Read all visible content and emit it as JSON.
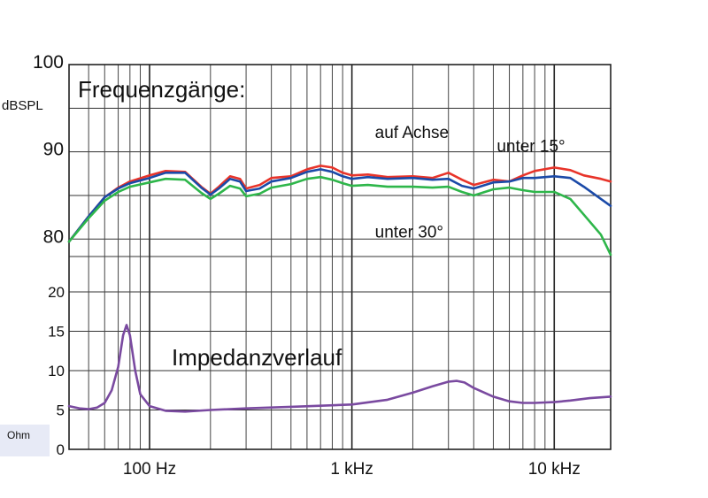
{
  "chart_data": {
    "type": "line",
    "title": "Frequenzgänge:",
    "annotation": "Impedanzverlauf",
    "x_axis": {
      "scale": "log",
      "unit": "Hz",
      "range": [
        40,
        19000
      ],
      "tick_labels": [
        {
          "value": 100,
          "label": "100 Hz"
        },
        {
          "value": 1000,
          "label": "1 kHz"
        },
        {
          "value": 10000,
          "label": "10 kHz"
        }
      ]
    },
    "spl_axis": {
      "unit_label": "dBSPL",
      "range": [
        78,
        100
      ],
      "tick_labels": [
        {
          "value": 100,
          "label": "100"
        },
        {
          "value": 90,
          "label": "90"
        },
        {
          "value": 80,
          "label": "80"
        }
      ]
    },
    "impedance_axis": {
      "unit_label": "Ohm",
      "range": [
        0,
        20
      ],
      "tick_labels": [
        {
          "value": 20,
          "label": "20"
        },
        {
          "value": 15,
          "label": "15"
        },
        {
          "value": 10,
          "label": "10"
        },
        {
          "value": 5,
          "label": "5"
        },
        {
          "value": 0,
          "label": "0"
        }
      ]
    },
    "series": [
      {
        "name": "auf Achse",
        "axis": "spl",
        "color": "#e8342a",
        "label_pos": {
          "freq": 1300,
          "value": 91.6
        },
        "points": [
          [
            40,
            79.7
          ],
          [
            50,
            82.6
          ],
          [
            60,
            84.8
          ],
          [
            70,
            85.9
          ],
          [
            80,
            86.6
          ],
          [
            100,
            87.3
          ],
          [
            120,
            87.8
          ],
          [
            150,
            87.7
          ],
          [
            180,
            86.0
          ],
          [
            200,
            85.2
          ],
          [
            220,
            86.0
          ],
          [
            250,
            87.2
          ],
          [
            280,
            86.9
          ],
          [
            300,
            85.8
          ],
          [
            350,
            86.2
          ],
          [
            400,
            87.0
          ],
          [
            500,
            87.2
          ],
          [
            600,
            88.0
          ],
          [
            700,
            88.4
          ],
          [
            800,
            88.2
          ],
          [
            900,
            87.6
          ],
          [
            1000,
            87.3
          ],
          [
            1200,
            87.4
          ],
          [
            1500,
            87.1
          ],
          [
            2000,
            87.2
          ],
          [
            2500,
            87.0
          ],
          [
            3000,
            87.6
          ],
          [
            3500,
            86.8
          ],
          [
            4000,
            86.2
          ],
          [
            5000,
            86.8
          ],
          [
            6000,
            86.6
          ],
          [
            7000,
            87.3
          ],
          [
            8000,
            87.8
          ],
          [
            10000,
            88.2
          ],
          [
            12000,
            87.9
          ],
          [
            14000,
            87.3
          ],
          [
            17000,
            86.9
          ],
          [
            19000,
            86.6
          ]
        ]
      },
      {
        "name": "unter 15°",
        "axis": "spl",
        "color": "#1b4aa8",
        "label_pos": {
          "freq": 5200,
          "value": 90.0
        },
        "points": [
          [
            40,
            79.7
          ],
          [
            50,
            82.6
          ],
          [
            60,
            84.8
          ],
          [
            70,
            85.8
          ],
          [
            80,
            86.4
          ],
          [
            100,
            87.0
          ],
          [
            120,
            87.6
          ],
          [
            150,
            87.6
          ],
          [
            180,
            85.9
          ],
          [
            200,
            85.1
          ],
          [
            220,
            85.8
          ],
          [
            250,
            86.9
          ],
          [
            280,
            86.6
          ],
          [
            300,
            85.5
          ],
          [
            350,
            85.8
          ],
          [
            400,
            86.6
          ],
          [
            500,
            87.0
          ],
          [
            600,
            87.7
          ],
          [
            700,
            88.0
          ],
          [
            800,
            87.7
          ],
          [
            900,
            87.2
          ],
          [
            1000,
            86.9
          ],
          [
            1200,
            87.1
          ],
          [
            1500,
            86.9
          ],
          [
            2000,
            87.0
          ],
          [
            2500,
            86.8
          ],
          [
            3000,
            86.9
          ],
          [
            3500,
            86.1
          ],
          [
            4000,
            85.8
          ],
          [
            5000,
            86.5
          ],
          [
            6000,
            86.6
          ],
          [
            7000,
            87.0
          ],
          [
            8000,
            87.0
          ],
          [
            10000,
            87.2
          ],
          [
            12000,
            87.0
          ],
          [
            14000,
            86.0
          ],
          [
            17000,
            84.6
          ],
          [
            19000,
            83.8
          ]
        ]
      },
      {
        "name": "unter 30°",
        "axis": "spl",
        "color": "#2eb64a",
        "label_pos": {
          "freq": 1300,
          "value": 80.2
        },
        "points": [
          [
            40,
            79.7
          ],
          [
            50,
            82.4
          ],
          [
            60,
            84.4
          ],
          [
            70,
            85.4
          ],
          [
            80,
            86.0
          ],
          [
            100,
            86.5
          ],
          [
            120,
            86.9
          ],
          [
            150,
            86.8
          ],
          [
            180,
            85.3
          ],
          [
            200,
            84.6
          ],
          [
            220,
            85.2
          ],
          [
            250,
            86.1
          ],
          [
            280,
            85.8
          ],
          [
            300,
            84.9
          ],
          [
            350,
            85.2
          ],
          [
            400,
            85.9
          ],
          [
            500,
            86.3
          ],
          [
            600,
            86.9
          ],
          [
            700,
            87.1
          ],
          [
            800,
            86.8
          ],
          [
            900,
            86.4
          ],
          [
            1000,
            86.1
          ],
          [
            1200,
            86.2
          ],
          [
            1500,
            86.0
          ],
          [
            2000,
            86.0
          ],
          [
            2500,
            85.9
          ],
          [
            3000,
            86.0
          ],
          [
            3500,
            85.4
          ],
          [
            4000,
            85.0
          ],
          [
            5000,
            85.7
          ],
          [
            6000,
            85.9
          ],
          [
            7000,
            85.6
          ],
          [
            8000,
            85.4
          ],
          [
            10000,
            85.4
          ],
          [
            12000,
            84.6
          ],
          [
            14000,
            82.8
          ],
          [
            17000,
            80.5
          ],
          [
            19000,
            78.2
          ]
        ]
      },
      {
        "name": "Impedanzverlauf",
        "axis": "impedance",
        "color": "#7a4aa0",
        "points": [
          [
            40,
            5.5
          ],
          [
            45,
            5.2
          ],
          [
            50,
            5.1
          ],
          [
            55,
            5.3
          ],
          [
            60,
            5.9
          ],
          [
            65,
            7.5
          ],
          [
            70,
            10.5
          ],
          [
            74,
            14.5
          ],
          [
            77,
            15.8
          ],
          [
            80,
            14.5
          ],
          [
            85,
            10.0
          ],
          [
            90,
            7.0
          ],
          [
            100,
            5.5
          ],
          [
            120,
            4.9
          ],
          [
            150,
            4.8
          ],
          [
            200,
            5.0
          ],
          [
            300,
            5.2
          ],
          [
            500,
            5.4
          ],
          [
            800,
            5.6
          ],
          [
            1000,
            5.7
          ],
          [
            1500,
            6.3
          ],
          [
            2000,
            7.2
          ],
          [
            2500,
            8.0
          ],
          [
            3000,
            8.6
          ],
          [
            3300,
            8.7
          ],
          [
            3600,
            8.5
          ],
          [
            4000,
            7.8
          ],
          [
            5000,
            6.7
          ],
          [
            6000,
            6.1
          ],
          [
            7000,
            5.9
          ],
          [
            8000,
            5.9
          ],
          [
            10000,
            6.0
          ],
          [
            12000,
            6.2
          ],
          [
            15000,
            6.5
          ],
          [
            19000,
            6.7
          ]
        ]
      }
    ]
  }
}
